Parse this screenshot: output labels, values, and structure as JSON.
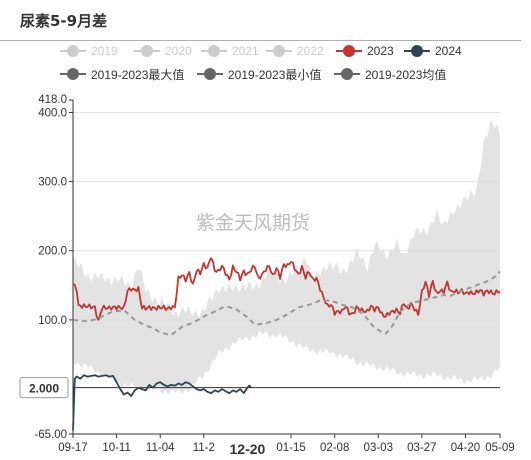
{
  "title": "尿素5-9月差",
  "watermark": "紫金天风期货",
  "legend": [
    {
      "label": "2019",
      "color": "#cccccc",
      "active": false
    },
    {
      "label": "2020",
      "color": "#cccccc",
      "active": false
    },
    {
      "label": "2021",
      "color": "#cccccc",
      "active": false
    },
    {
      "label": "2022",
      "color": "#cccccc",
      "active": false
    },
    {
      "label": "2023",
      "color": "#c23531",
      "active": true
    },
    {
      "label": "2024",
      "color": "#2f4554",
      "active": true
    },
    {
      "label": "2019-2023最大值",
      "color": "#666666",
      "active": true
    },
    {
      "label": "2019-2023最小值",
      "color": "#666666",
      "active": true
    },
    {
      "label": "2019-2023均值",
      "color": "#666666",
      "active": true
    }
  ],
  "pointer": {
    "value_label": "2.000",
    "date_label": "12-20"
  },
  "chart_data": {
    "type": "line",
    "title": "尿素5-9月差",
    "xlabel": "",
    "ylabel": "",
    "ylim": [
      -65,
      418
    ],
    "y_ticks": [
      "418.0",
      "400.0",
      "300.0",
      "200.0",
      "100.0",
      "-65.00"
    ],
    "y_tick_values": [
      418,
      400,
      300,
      200,
      100,
      -65
    ],
    "x_tick_labels": [
      "09-17",
      "10-11",
      "11-04",
      "11-2",
      "12-20",
      "01-15",
      "02-08",
      "03-03",
      "03-27",
      "04-20",
      "05-09"
    ],
    "x_tick_index": [
      0,
      24,
      48,
      72,
      96,
      120,
      144,
      168,
      192,
      216,
      235
    ],
    "x_count": 236,
    "grid": true,
    "legend_position": "top",
    "band": {
      "name": "2019-2023最大值 / 2019-2023最小值",
      "upper": [
        [
          0,
          185
        ],
        [
          8,
          165
        ],
        [
          16,
          160
        ],
        [
          24,
          158
        ],
        [
          32,
          150
        ],
        [
          36,
          178
        ],
        [
          40,
          142
        ],
        [
          48,
          125
        ],
        [
          56,
          112
        ],
        [
          64,
          112
        ],
        [
          72,
          112
        ],
        [
          80,
          148
        ],
        [
          86,
          142
        ],
        [
          92,
          150
        ],
        [
          100,
          145
        ],
        [
          108,
          172
        ],
        [
          116,
          158
        ],
        [
          124,
          170
        ],
        [
          128,
          195
        ],
        [
          132,
          155
        ],
        [
          140,
          182
        ],
        [
          148,
          168
        ],
        [
          156,
          195
        ],
        [
          162,
          178
        ],
        [
          166,
          210
        ],
        [
          172,
          192
        ],
        [
          178,
          212
        ],
        [
          182,
          188
        ],
        [
          188,
          232
        ],
        [
          194,
          222
        ],
        [
          200,
          258
        ],
        [
          204,
          232
        ],
        [
          210,
          262
        ],
        [
          216,
          272
        ],
        [
          222,
          290
        ],
        [
          226,
          352
        ],
        [
          230,
          382
        ],
        [
          233,
          385
        ],
        [
          235,
          370
        ]
      ],
      "lower": [
        [
          0,
          40
        ],
        [
          8,
          32
        ],
        [
          16,
          22
        ],
        [
          24,
          10
        ],
        [
          32,
          4
        ],
        [
          40,
          0
        ],
        [
          48,
          -2
        ],
        [
          56,
          -5
        ],
        [
          64,
          0
        ],
        [
          72,
          20
        ],
        [
          80,
          50
        ],
        [
          88,
          66
        ],
        [
          96,
          74
        ],
        [
          104,
          80
        ],
        [
          112,
          78
        ],
        [
          120,
          70
        ],
        [
          128,
          58
        ],
        [
          136,
          54
        ],
        [
          144,
          52
        ],
        [
          152,
          44
        ],
        [
          160,
          36
        ],
        [
          168,
          32
        ],
        [
          176,
          26
        ],
        [
          184,
          22
        ],
        [
          192,
          20
        ],
        [
          200,
          20
        ],
        [
          208,
          16
        ],
        [
          216,
          12
        ],
        [
          224,
          14
        ],
        [
          230,
          20
        ],
        [
          235,
          30
        ]
      ]
    },
    "series": [
      {
        "name": "2023",
        "color": "#c23531",
        "dash": false,
        "points": [
          [
            0,
            152
          ],
          [
            2,
            145
          ],
          [
            3,
            120
          ],
          [
            8,
            120
          ],
          [
            12,
            118
          ],
          [
            14,
            98
          ],
          [
            16,
            118
          ],
          [
            20,
            117
          ],
          [
            22,
            118
          ],
          [
            26,
            118
          ],
          [
            28,
            117
          ],
          [
            30,
            142
          ],
          [
            32,
            145
          ],
          [
            34,
            143
          ],
          [
            36,
            145
          ],
          [
            38,
            118
          ],
          [
            40,
            117
          ],
          [
            42,
            118
          ],
          [
            44,
            117
          ],
          [
            46,
            117
          ],
          [
            48,
            118
          ],
          [
            50,
            118
          ],
          [
            52,
            116
          ],
          [
            54,
            118
          ],
          [
            56,
            118
          ],
          [
            58,
            160
          ],
          [
            60,
            165
          ],
          [
            62,
            158
          ],
          [
            64,
            168
          ],
          [
            66,
            150
          ],
          [
            68,
            172
          ],
          [
            70,
            168
          ],
          [
            72,
            180
          ],
          [
            74,
            175
          ],
          [
            76,
            192
          ],
          [
            78,
            172
          ],
          [
            80,
            170
          ],
          [
            82,
            178
          ],
          [
            84,
            168
          ],
          [
            86,
            158
          ],
          [
            88,
            176
          ],
          [
            90,
            170
          ],
          [
            92,
            160
          ],
          [
            94,
            170
          ],
          [
            96,
            165
          ],
          [
            98,
            173
          ],
          [
            100,
            178
          ],
          [
            102,
            160
          ],
          [
            104,
            165
          ],
          [
            106,
            173
          ],
          [
            108,
            178
          ],
          [
            110,
            163
          ],
          [
            112,
            175
          ],
          [
            114,
            162
          ],
          [
            116,
            180
          ],
          [
            118,
            178
          ],
          [
            120,
            185
          ],
          [
            122,
            175
          ],
          [
            124,
            165
          ],
          [
            126,
            176
          ],
          [
            128,
            162
          ],
          [
            130,
            170
          ],
          [
            132,
            158
          ],
          [
            134,
            160
          ],
          [
            136,
            145
          ],
          [
            138,
            132
          ],
          [
            140,
            120
          ],
          [
            142,
            122
          ],
          [
            144,
            110
          ],
          [
            146,
            112
          ],
          [
            148,
            112
          ],
          [
            150,
            120
          ],
          [
            152,
            110
          ],
          [
            154,
            108
          ],
          [
            156,
            118
          ],
          [
            158,
            115
          ],
          [
            160,
            113
          ],
          [
            162,
            112
          ],
          [
            164,
            120
          ],
          [
            166,
            115
          ],
          [
            168,
            118
          ],
          [
            170,
            108
          ],
          [
            172,
            105
          ],
          [
            174,
            110
          ],
          [
            176,
            112
          ],
          [
            178,
            114
          ],
          [
            180,
            110
          ],
          [
            182,
            125
          ],
          [
            184,
            115
          ],
          [
            186,
            123
          ],
          [
            188,
            116
          ],
          [
            190,
            108
          ],
          [
            192,
            140
          ],
          [
            194,
            155
          ],
          [
            196,
            136
          ],
          [
            198,
            156
          ],
          [
            200,
            138
          ],
          [
            202,
            142
          ],
          [
            204,
            141
          ],
          [
            206,
            154
          ],
          [
            208,
            140
          ],
          [
            210,
            142
          ],
          [
            212,
            140
          ],
          [
            214,
            142
          ],
          [
            216,
            138
          ],
          [
            218,
            140
          ],
          [
            220,
            138
          ],
          [
            222,
            140
          ],
          [
            224,
            143
          ],
          [
            226,
            138
          ],
          [
            228,
            142
          ],
          [
            230,
            140
          ],
          [
            232,
            138
          ],
          [
            234,
            142
          ],
          [
            235,
            140
          ]
        ]
      },
      {
        "name": "2024",
        "color": "#2f4554",
        "dash": false,
        "points": [
          [
            0,
            -60
          ],
          [
            1,
            15
          ],
          [
            2,
            18
          ],
          [
            4,
            15
          ],
          [
            6,
            20
          ],
          [
            8,
            18
          ],
          [
            10,
            19
          ],
          [
            12,
            20
          ],
          [
            14,
            18
          ],
          [
            16,
            19
          ],
          [
            18,
            20
          ],
          [
            20,
            18
          ],
          [
            22,
            19
          ],
          [
            24,
            10
          ],
          [
            26,
            0
          ],
          [
            28,
            -8
          ],
          [
            30,
            -5
          ],
          [
            32,
            -10
          ],
          [
            34,
            -2
          ],
          [
            36,
            2
          ],
          [
            38,
            0
          ],
          [
            40,
            -2
          ],
          [
            42,
            6
          ],
          [
            44,
            2
          ],
          [
            46,
            8
          ],
          [
            48,
            10
          ],
          [
            50,
            6
          ],
          [
            52,
            4
          ],
          [
            54,
            6
          ],
          [
            56,
            5
          ],
          [
            58,
            8
          ],
          [
            60,
            6
          ],
          [
            62,
            10
          ],
          [
            64,
            8
          ],
          [
            66,
            4
          ],
          [
            68,
            0
          ],
          [
            70,
            -2
          ],
          [
            72,
            0
          ],
          [
            74,
            -4
          ],
          [
            76,
            -6
          ],
          [
            78,
            -2
          ],
          [
            80,
            -4
          ],
          [
            82,
            0
          ],
          [
            84,
            -3
          ],
          [
            86,
            -6
          ],
          [
            88,
            -2
          ],
          [
            90,
            -4
          ],
          [
            92,
            0
          ],
          [
            94,
            -6
          ],
          [
            96,
            2
          ],
          [
            97,
            5
          ],
          [
            98,
            2
          ]
        ]
      },
      {
        "name": "2019-2023均值",
        "color": "#999999",
        "dash": true,
        "points": [
          [
            0,
            100
          ],
          [
            8,
            98
          ],
          [
            14,
            102
          ],
          [
            18,
            108
          ],
          [
            22,
            112
          ],
          [
            28,
            114
          ],
          [
            34,
            100
          ],
          [
            40,
            92
          ],
          [
            44,
            88
          ],
          [
            48,
            82
          ],
          [
            54,
            78
          ],
          [
            60,
            90
          ],
          [
            66,
            96
          ],
          [
            72,
            105
          ],
          [
            78,
            112
          ],
          [
            84,
            120
          ],
          [
            90,
            115
          ],
          [
            96,
            104
          ],
          [
            100,
            93
          ],
          [
            106,
            95
          ],
          [
            112,
            100
          ],
          [
            118,
            108
          ],
          [
            124,
            118
          ],
          [
            130,
            122
          ],
          [
            136,
            128
          ],
          [
            142,
            128
          ],
          [
            148,
            122
          ],
          [
            154,
            118
          ],
          [
            160,
            108
          ],
          [
            166,
            88
          ],
          [
            172,
            80
          ],
          [
            176,
            92
          ],
          [
            180,
            112
          ],
          [
            186,
            124
          ],
          [
            192,
            128
          ],
          [
            198,
            132
          ],
          [
            204,
            136
          ],
          [
            208,
            135
          ],
          [
            212,
            140
          ],
          [
            218,
            146
          ],
          [
            224,
            152
          ],
          [
            228,
            156
          ],
          [
            232,
            162
          ],
          [
            235,
            170
          ]
        ]
      }
    ]
  }
}
